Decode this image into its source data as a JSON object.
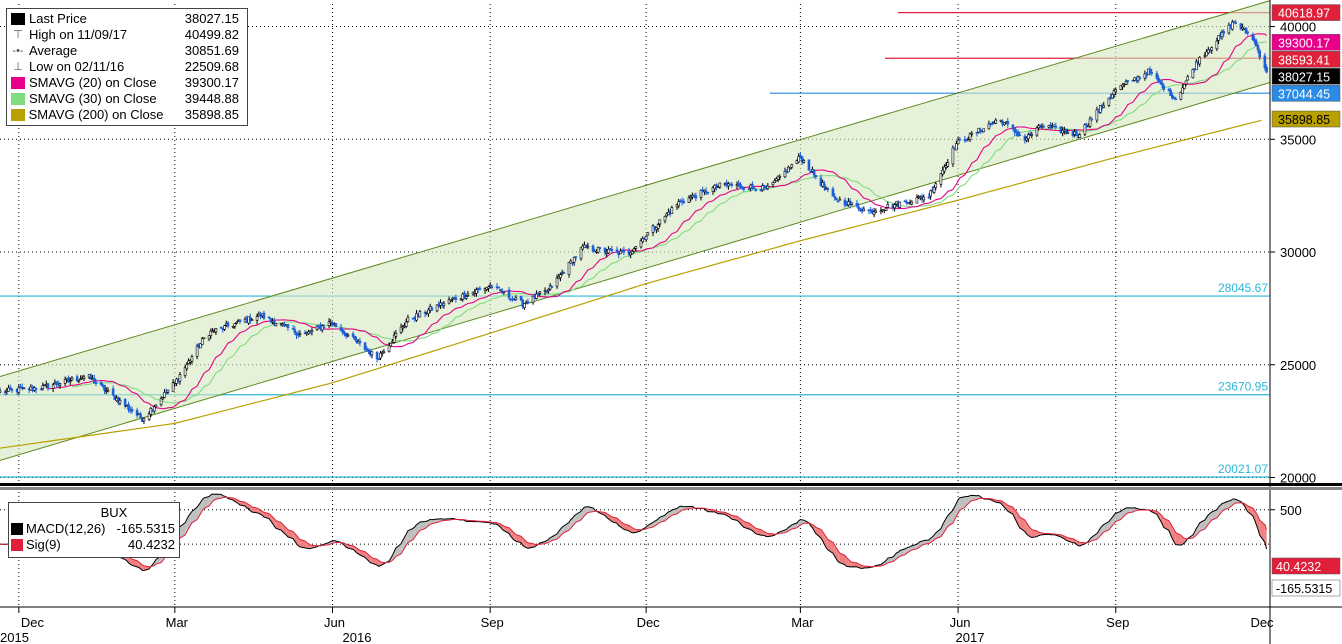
{
  "chart_data": {
    "type": "candlestick",
    "instrument": "BUX",
    "x_axis": {
      "tick_labels": [
        "Dec",
        "Mar",
        "Jun",
        "Sep",
        "Dec",
        "Mar",
        "Jun",
        "Sep",
        "Dec"
      ],
      "year_labels": [
        "2015",
        "2016",
        "2017"
      ]
    },
    "y_axis": {
      "tick_labels": [
        "40000",
        "35000",
        "30000",
        "25000",
        "20000"
      ],
      "range": [
        19800,
        41000
      ]
    },
    "legend": [
      {
        "label": "Last Price",
        "value": "38027.15",
        "color": "#000000"
      },
      {
        "label": "High on 11/09/17",
        "value": "40499.82",
        "color": "#000000"
      },
      {
        "label": "Average",
        "value": "30851.69",
        "color": "#000000"
      },
      {
        "label": "Low on 02/11/16",
        "value": "22509.68",
        "color": "#000000"
      },
      {
        "label": "SMAVG (20) on Close",
        "value": "39300.17",
        "color": "#e8008a"
      },
      {
        "label": "SMAVG (30) on Close",
        "value": "39448.88",
        "color": "#7fdc7f"
      },
      {
        "label": "SMAVG (200) on Close",
        "value": "35898.85",
        "color": "#b8a000"
      }
    ],
    "horizontal_lines": [
      {
        "value": 40618.97,
        "label": "40618.97",
        "color": "#e0203a"
      },
      {
        "value": 38593.41,
        "label": "38593.41",
        "color": "#e0203a"
      },
      {
        "value": 37044.45,
        "label": "37044.45",
        "color": "#2a8ae6"
      },
      {
        "value": 28045.67,
        "label": "28045.67",
        "color": "#2ab8d8"
      },
      {
        "value": 23670.95,
        "label": "23670.95",
        "color": "#2ab8d8"
      },
      {
        "value": 20021.07,
        "label": "20021.07",
        "color": "#2ab8d8"
      }
    ],
    "price_labels": [
      {
        "value": 40618.97,
        "label": "40618.97",
        "bg": "#e0203a",
        "fg": "#ffffff"
      },
      {
        "value": 39300.17,
        "label": "39300.17",
        "bg": "#e8008a",
        "fg": "#ffffff"
      },
      {
        "value": 38593.41,
        "label": "38593.41",
        "bg": "#e0203a",
        "fg": "#ffffff"
      },
      {
        "value": 38027.15,
        "label": "38027.15",
        "bg": "#000000",
        "fg": "#ffffff"
      },
      {
        "value": 37044.45,
        "label": "37044.45",
        "bg": "#2a8ae6",
        "fg": "#ffffff"
      },
      {
        "value": 35898.85,
        "label": "35898.85",
        "bg": "#b8a000",
        "fg": "#000000"
      }
    ],
    "channel": {
      "upper": [
        {
          "date": "2015-11-20",
          "value": 24480
        },
        {
          "date": "2017-11-30",
          "value": 41150
        }
      ],
      "lower": [
        {
          "date": "2015-11-20",
          "value": 20760
        },
        {
          "date": "2017-11-30",
          "value": 37520
        }
      ]
    },
    "price_keypoints": [
      {
        "date": "2015-11-20",
        "value": 23800
      },
      {
        "date": "2015-12-15",
        "value": 24000
      },
      {
        "date": "2016-01-10",
        "value": 24500
      },
      {
        "date": "2016-02-11",
        "value": 22600
      },
      {
        "date": "2016-03-01",
        "value": 24200
      },
      {
        "date": "2016-03-20",
        "value": 26400
      },
      {
        "date": "2016-04-20",
        "value": 27200
      },
      {
        "date": "2016-05-15",
        "value": 26300
      },
      {
        "date": "2016-05-31",
        "value": 26900
      },
      {
        "date": "2016-06-27",
        "value": 25300
      },
      {
        "date": "2016-07-15",
        "value": 27000
      },
      {
        "date": "2016-08-10",
        "value": 27900
      },
      {
        "date": "2016-09-01",
        "value": 28500
      },
      {
        "date": "2016-09-20",
        "value": 27700
      },
      {
        "date": "2016-10-05",
        "value": 28300
      },
      {
        "date": "2016-10-25",
        "value": 30200
      },
      {
        "date": "2016-11-20",
        "value": 29900
      },
      {
        "date": "2016-12-20",
        "value": 32200
      },
      {
        "date": "2017-01-15",
        "value": 33000
      },
      {
        "date": "2017-02-10",
        "value": 32800
      },
      {
        "date": "2017-03-01",
        "value": 34200
      },
      {
        "date": "2017-03-20",
        "value": 32400
      },
      {
        "date": "2017-04-10",
        "value": 31800
      },
      {
        "date": "2017-05-15",
        "value": 32500
      },
      {
        "date": "2017-05-31",
        "value": 34800
      },
      {
        "date": "2017-06-25",
        "value": 35900
      },
      {
        "date": "2017-07-10",
        "value": 35000
      },
      {
        "date": "2017-07-20",
        "value": 35600
      },
      {
        "date": "2017-08-10",
        "value": 35200
      },
      {
        "date": "2017-09-01",
        "value": 37200
      },
      {
        "date": "2017-09-20",
        "value": 38000
      },
      {
        "date": "2017-10-06",
        "value": 36800
      },
      {
        "date": "2017-10-20",
        "value": 38600
      },
      {
        "date": "2017-11-09",
        "value": 40200
      },
      {
        "date": "2017-11-20",
        "value": 39500
      },
      {
        "date": "2017-11-28",
        "value": 38027
      }
    ],
    "sma200_keypoints": [
      {
        "date": "2015-11-20",
        "value": 21300
      },
      {
        "date": "2016-03-01",
        "value": 22400
      },
      {
        "date": "2016-06-01",
        "value": 24200
      },
      {
        "date": "2016-09-01",
        "value": 26400
      },
      {
        "date": "2016-12-01",
        "value": 28600
      },
      {
        "date": "2017-03-01",
        "value": 30500
      },
      {
        "date": "2017-06-01",
        "value": 32300
      },
      {
        "date": "2017-09-01",
        "value": 34200
      },
      {
        "date": "2017-11-28",
        "value": 35899
      }
    ],
    "macd": {
      "title": "BUX",
      "macd_label": "MACD(12,26)",
      "macd_value": "-165.5315",
      "sig_label": "Sig(9)",
      "sig_value": "40.4232",
      "y_tick": "500",
      "right_labels": [
        {
          "label": "40.4232",
          "bg": "#e0203a",
          "fg": "#ffffff"
        },
        {
          "label": "-165.5315",
          "bg": "#ffffff",
          "fg": "#000000"
        }
      ]
    }
  }
}
